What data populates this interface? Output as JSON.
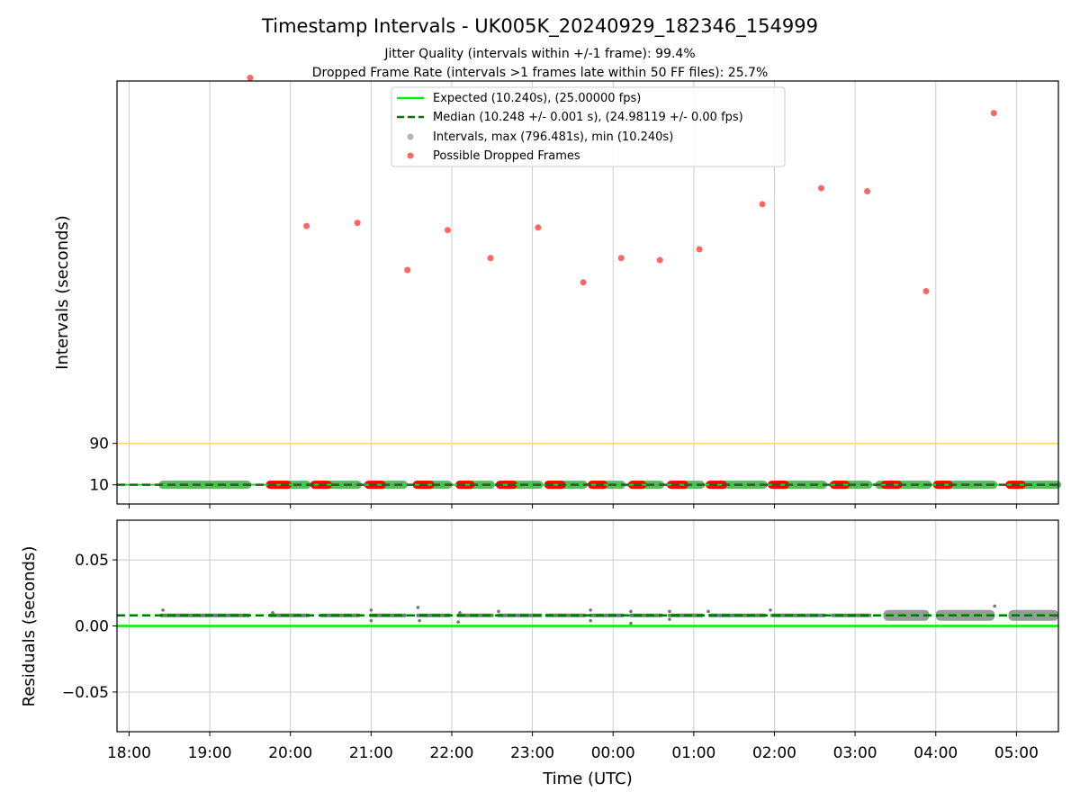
{
  "chart_data": {
    "type": "scatter",
    "title": "Timestamp Intervals - UK005K_20240929_182346_154999",
    "subtitle_lines": [
      "Jitter Quality (intervals within +/-1 frame): 99.4%",
      "Dropped Frame Rate (intervals >1 frames late within 50 FF files): 25.7%"
    ],
    "xlabel": "Time (UTC)",
    "x_tick_labels": [
      "18:00",
      "19:00",
      "20:00",
      "21:00",
      "22:00",
      "23:00",
      "00:00",
      "01:00",
      "02:00",
      "03:00",
      "04:00",
      "05:00"
    ],
    "x_tick_hours": [
      18,
      19,
      20,
      21,
      22,
      23,
      24,
      25,
      26,
      27,
      28,
      29
    ],
    "x_range_hours": [
      17.85,
      29.52
    ],
    "grid": true,
    "legend_position": "top-center",
    "top_panel": {
      "ylabel": "Intervals (seconds)",
      "y_tick_values": [
        10,
        90
      ],
      "y_tick_labels": [
        "10",
        "90"
      ],
      "ylim": [
        -27,
        790
      ],
      "expected_interval": 10.24,
      "median_interval": 10.248,
      "threshold_line_value": 90,
      "legend": [
        "Expected (10.240s), (25.00000 fps)",
        "Median (10.248 +/- 0.001 s), (24.98119 +/- 0.00 fps)",
        "Intervals, max (796.481s), min (10.240s)",
        "Possible Dropped Frames"
      ],
      "normal_segments_hours": [
        [
          18.4,
          19.48
        ],
        [
          19.75,
          20.22
        ],
        [
          20.38,
          20.85
        ],
        [
          21.0,
          21.42
        ],
        [
          21.58,
          21.97
        ],
        [
          22.08,
          22.5
        ],
        [
          22.58,
          23.1
        ],
        [
          23.18,
          23.65
        ],
        [
          23.72,
          24.12
        ],
        [
          24.22,
          24.6
        ],
        [
          24.7,
          25.1
        ],
        [
          25.2,
          25.88
        ],
        [
          25.97,
          26.62
        ],
        [
          26.72,
          27.18
        ],
        [
          27.28,
          27.92
        ],
        [
          28.0,
          28.73
        ],
        [
          28.9,
          29.52
        ]
      ],
      "dropped_clusters_hours": [
        [
          19.73,
          19.98
        ],
        [
          20.28,
          20.48
        ],
        [
          20.95,
          21.15
        ],
        [
          21.55,
          21.75
        ],
        [
          22.08,
          22.25
        ],
        [
          22.58,
          22.78
        ],
        [
          23.18,
          23.38
        ],
        [
          23.72,
          23.9
        ],
        [
          24.22,
          24.38
        ],
        [
          24.7,
          24.9
        ],
        [
          25.18,
          25.38
        ],
        [
          25.95,
          26.15
        ],
        [
          26.72,
          26.9
        ],
        [
          27.35,
          27.55
        ],
        [
          28.0,
          28.18
        ],
        [
          28.9,
          29.08
        ]
      ],
      "dropped_outliers": [
        {
          "hour": 19.5,
          "value": 796
        },
        {
          "hour": 20.2,
          "value": 510
        },
        {
          "hour": 20.83,
          "value": 516
        },
        {
          "hour": 21.45,
          "value": 425
        },
        {
          "hour": 21.95,
          "value": 502
        },
        {
          "hour": 22.48,
          "value": 448
        },
        {
          "hour": 23.07,
          "value": 507
        },
        {
          "hour": 23.63,
          "value": 401
        },
        {
          "hour": 24.1,
          "value": 448
        },
        {
          "hour": 24.58,
          "value": 444
        },
        {
          "hour": 25.07,
          "value": 465
        },
        {
          "hour": 25.85,
          "value": 552
        },
        {
          "hour": 26.58,
          "value": 583
        },
        {
          "hour": 27.15,
          "value": 577
        },
        {
          "hour": 27.88,
          "value": 384
        },
        {
          "hour": 28.72,
          "value": 728
        }
      ]
    },
    "bottom_panel": {
      "ylabel": "Residuals (seconds)",
      "y_tick_values": [
        0.05,
        0,
        -0.05
      ],
      "y_tick_labels": [
        "0.05",
        "0.00",
        "−0.05"
      ],
      "ylim": [
        -0.08,
        0.08
      ],
      "expected_residual": 0.0,
      "median_residual": 0.008,
      "residual_segments_hours": [
        [
          18.4,
          19.48
        ],
        [
          19.75,
          20.22
        ],
        [
          20.38,
          20.85
        ],
        [
          21.0,
          21.42
        ],
        [
          21.58,
          21.97
        ],
        [
          22.08,
          22.5
        ],
        [
          22.58,
          23.1
        ],
        [
          23.18,
          23.65
        ],
        [
          23.72,
          24.12
        ],
        [
          24.22,
          24.6
        ],
        [
          24.7,
          25.1
        ],
        [
          25.2,
          25.88
        ],
        [
          25.97,
          26.62
        ],
        [
          26.72,
          27.18
        ]
      ],
      "scatter_band_hours": [
        [
          27.35,
          27.92
        ],
        [
          28.0,
          28.73
        ],
        [
          28.9,
          29.52
        ]
      ],
      "residual_outliers": [
        {
          "hour": 18.42,
          "value": 0.012
        },
        {
          "hour": 19.78,
          "value": 0.01
        },
        {
          "hour": 21.0,
          "value": 0.012
        },
        {
          "hour": 21.0,
          "value": 0.004
        },
        {
          "hour": 21.58,
          "value": 0.014
        },
        {
          "hour": 21.6,
          "value": 0.004
        },
        {
          "hour": 22.08,
          "value": 0.003
        },
        {
          "hour": 22.1,
          "value": 0.01
        },
        {
          "hour": 22.58,
          "value": 0.011
        },
        {
          "hour": 23.72,
          "value": 0.012
        },
        {
          "hour": 23.72,
          "value": 0.004
        },
        {
          "hour": 24.22,
          "value": 0.002
        },
        {
          "hour": 24.22,
          "value": 0.011
        },
        {
          "hour": 24.7,
          "value": 0.011
        },
        {
          "hour": 24.7,
          "value": 0.005
        },
        {
          "hour": 25.18,
          "value": 0.011
        },
        {
          "hour": 25.95,
          "value": 0.012
        },
        {
          "hour": 28.73,
          "value": 0.015
        }
      ]
    },
    "colors": {
      "expected_line": "#00ee00",
      "median_line": "#007700",
      "threshold_line": "#ffd966",
      "intervals_points": "#777777",
      "normal_band_fill": "#4caf50",
      "dropped_points": "#ff0000",
      "grid": "#cccccc"
    }
  }
}
